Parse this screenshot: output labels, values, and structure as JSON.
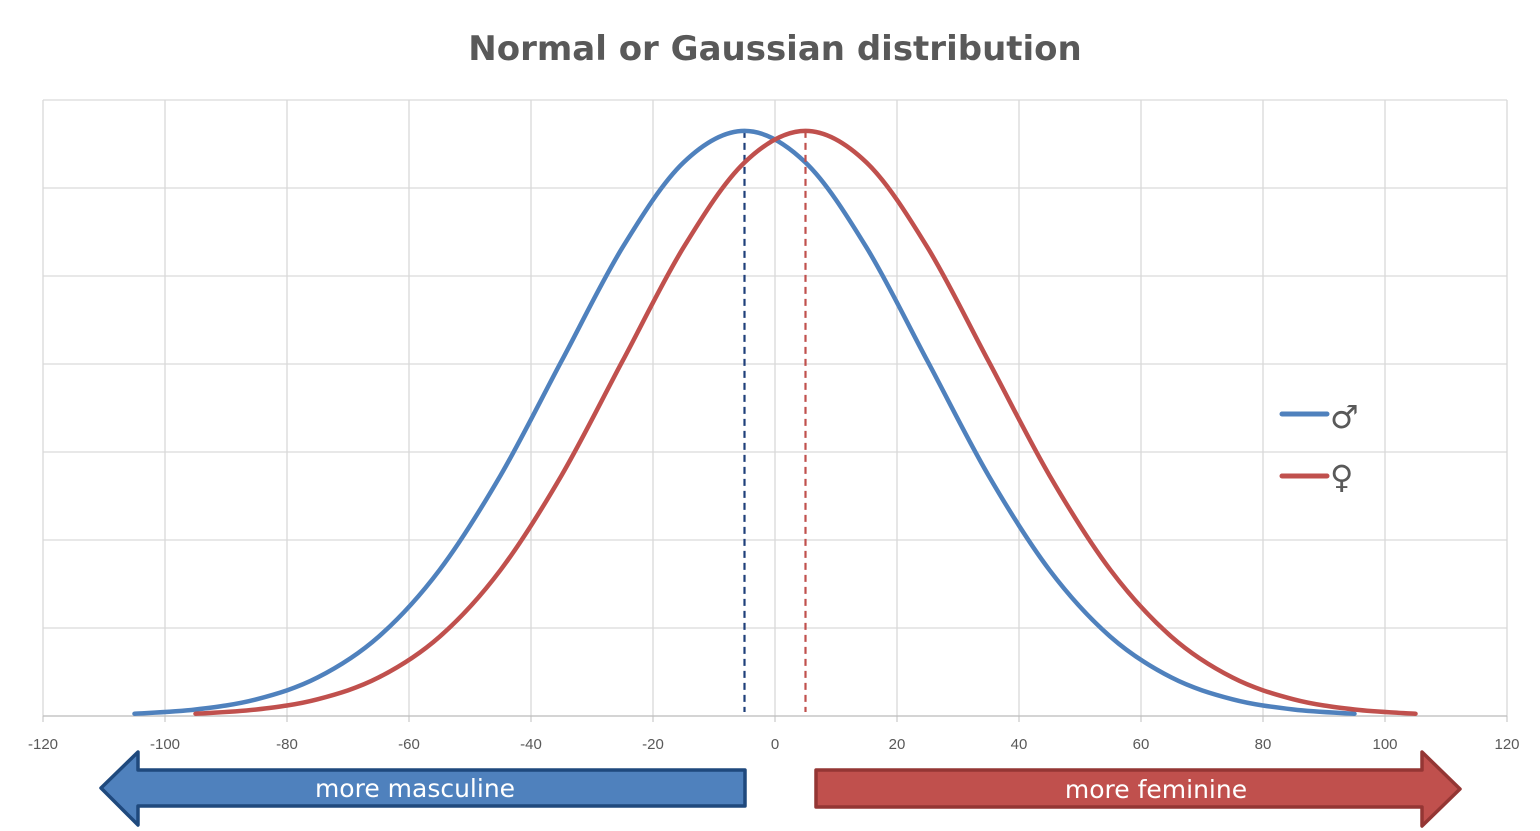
{
  "chart_data": {
    "type": "line",
    "title": "Normal or Gaussian distribution",
    "xlabel": "",
    "ylabel": "",
    "xlim": [
      -120,
      120
    ],
    "ylim": [
      0,
      0.014
    ],
    "x_ticks": [
      "-120",
      "-100",
      "-80",
      "-60",
      "-40",
      "-20",
      "0",
      "20",
      "40",
      "60",
      "80",
      "100",
      "120"
    ],
    "y_tick_labels_shown": false,
    "grid": true,
    "legend_position": "right",
    "series": [
      {
        "name": "♂",
        "color": "#4f81bd",
        "mean": -5,
        "mean_line_color": "#1f3f7a",
        "x": [
          -105,
          -95,
          -85,
          -75,
          -65,
          -55,
          -45,
          -35,
          -25,
          -15,
          -5,
          5,
          15,
          25,
          35,
          45,
          55,
          65,
          75,
          85,
          95
        ],
        "y": [
          5.14e-05,
          0.000148,
          0.00038,
          0.000874,
          0.0018,
          0.003317,
          0.005467,
          0.008066,
          0.010648,
          0.012579,
          0.013298,
          0.012579,
          0.010648,
          0.008066,
          0.005467,
          0.003317,
          0.0018,
          0.000874,
          0.00038,
          0.000148,
          5.14e-05
        ]
      },
      {
        "name": "♀",
        "color": "#c0504d",
        "mean": 5,
        "mean_line_color": "#c0504d",
        "x": [
          -95,
          -85,
          -75,
          -65,
          -55,
          -45,
          -35,
          -25,
          -15,
          -5,
          5,
          15,
          25,
          35,
          45,
          55,
          65,
          75,
          85,
          95,
          105
        ],
        "y": [
          5.14e-05,
          0.000148,
          0.00038,
          0.000874,
          0.0018,
          0.003317,
          0.005467,
          0.008066,
          0.010648,
          0.012579,
          0.013298,
          0.012579,
          0.010648,
          0.008066,
          0.005467,
          0.003317,
          0.0018,
          0.000874,
          0.00038,
          0.000148,
          5.14e-05
        ]
      }
    ],
    "annotations": [
      {
        "text": "more masculine",
        "direction": "left",
        "color": "#4f81bd",
        "border": "#1f497d"
      },
      {
        "text": "more feminine",
        "direction": "right",
        "color": "#c0504d",
        "border": "#943634"
      }
    ]
  }
}
